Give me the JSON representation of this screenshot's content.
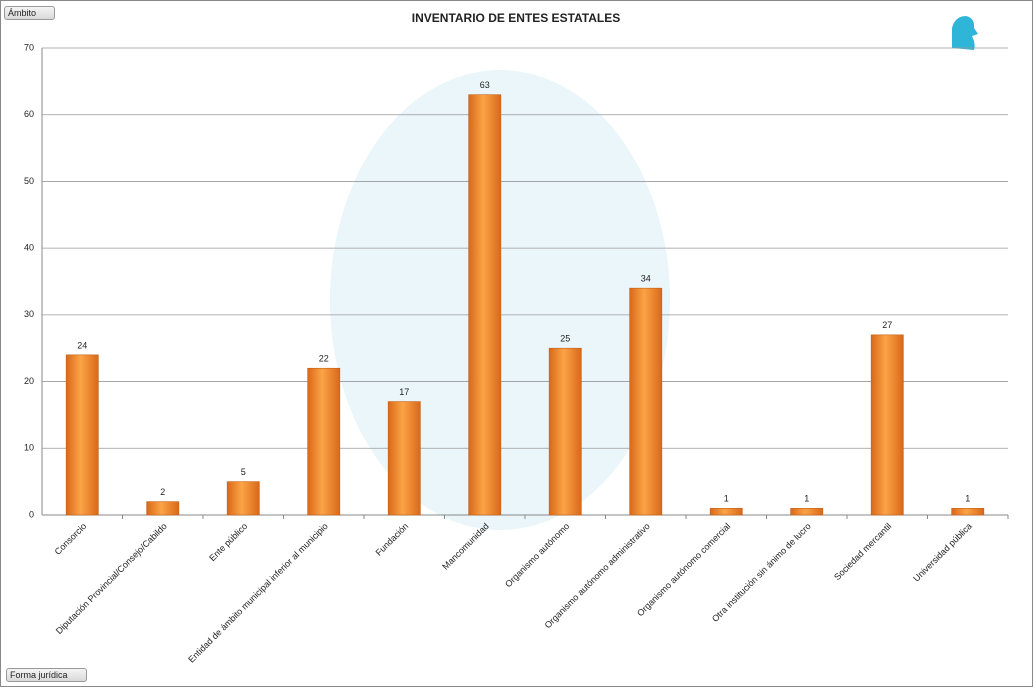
{
  "chart_data": {
    "type": "bar",
    "title": "INVENTARIO DE ENTES ESTATALES",
    "categories": [
      "Consorcio",
      "Diputación Provincial/Consejo/Cabildo",
      "Ente público",
      "Entidad de ámbito municipal inferior al municipio",
      "Fundación",
      "Mancomunidad",
      "Organismo autónomo",
      "Organismo autónomo administrativo",
      "Organismo autónomo comercial",
      "Otra institución sin ánimo de lucro",
      "Sociedad mercantil",
      "Universidad pública"
    ],
    "values": [
      24,
      2,
      5,
      22,
      17,
      63,
      25,
      34,
      1,
      1,
      27,
      1
    ],
    "color": "#f08c2e",
    "ylim": [
      0,
      70
    ],
    "yticks": [
      0,
      10,
      20,
      30,
      40,
      50,
      60,
      70
    ],
    "grid": true
  },
  "controls": {
    "report_filter": "Ámbito",
    "axis_field": "Forma jurídica"
  }
}
